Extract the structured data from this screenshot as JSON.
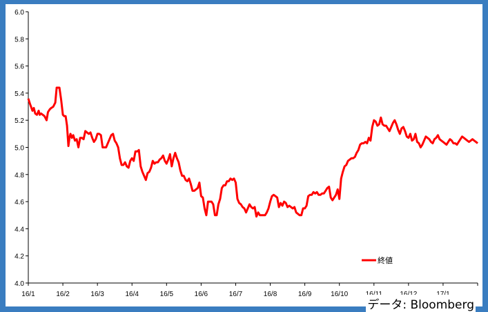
{
  "source": "データ: Bloomberg",
  "chart_data": {
    "type": "line",
    "title": "",
    "xlabel": "",
    "ylabel": "",
    "ylim": [
      4.0,
      6.0
    ],
    "yticks": [
      "4.0",
      "4.2",
      "4.4",
      "4.6",
      "4.8",
      "5.0",
      "5.2",
      "5.4",
      "5.6",
      "5.8",
      "6.0"
    ],
    "xtick_labels": [
      "16/1",
      "16/2",
      "16/3",
      "16/4",
      "16/5",
      "16/6",
      "16/7",
      "16/8",
      "16/9",
      "16/10",
      "16/11",
      "16/12",
      "17/1"
    ],
    "legend": "bottom-right",
    "grid": false,
    "colors": {
      "line": "#ff0000",
      "axis": "#000000",
      "frame": "#3a7dc0"
    },
    "series": [
      {
        "name": "終値",
        "x": [
          0.0,
          0.05,
          0.08,
          0.12,
          0.16,
          0.2,
          0.25,
          0.3,
          0.33,
          0.37,
          0.42,
          0.47,
          0.53,
          0.57,
          0.62,
          0.66,
          0.72,
          0.78,
          0.82,
          0.86,
          0.9,
          0.95,
          1.0,
          1.04,
          1.08,
          1.12,
          1.16,
          1.19,
          1.22,
          1.26,
          1.3,
          1.35,
          1.4,
          1.45,
          1.5,
          1.55,
          1.6,
          1.65,
          1.7,
          1.75,
          1.8,
          1.85,
          1.9,
          1.95,
          2.0,
          2.05,
          2.1,
          2.15,
          2.2,
          2.25,
          2.3,
          2.35,
          2.4,
          2.45,
          2.5,
          2.55,
          2.6,
          2.65,
          2.7,
          2.75,
          2.8,
          2.85,
          2.9,
          2.95,
          3.0,
          3.05,
          3.1,
          3.15,
          3.2,
          3.25,
          3.3,
          3.35,
          3.4,
          3.45,
          3.5,
          3.55,
          3.6,
          3.65,
          3.7,
          3.75,
          3.8,
          3.85,
          3.9,
          3.95,
          4.0,
          4.05,
          4.1,
          4.15,
          4.2,
          4.25,
          4.3,
          4.35,
          4.4,
          4.45,
          4.5,
          4.55,
          4.6,
          4.65,
          4.7,
          4.75,
          4.8,
          4.85,
          4.9,
          4.95,
          5.0,
          5.05,
          5.1,
          5.15,
          5.2,
          5.25,
          5.3,
          5.35,
          5.4,
          5.45,
          5.5,
          5.55,
          5.6,
          5.65,
          5.7,
          5.75,
          5.8,
          5.85,
          5.9,
          5.95,
          6.0,
          6.05,
          6.1,
          6.15,
          6.2,
          6.25,
          6.3,
          6.35,
          6.4,
          6.45,
          6.5,
          6.55,
          6.6,
          6.65,
          6.7,
          6.75,
          6.8,
          6.85,
          6.9,
          6.95,
          7.0,
          7.05,
          7.1,
          7.15,
          7.2,
          7.25,
          7.3,
          7.35,
          7.4,
          7.45,
          7.5,
          7.55,
          7.6,
          7.65,
          7.7,
          7.75,
          7.8,
          7.85,
          7.9,
          7.95,
          8.0,
          8.05,
          8.1,
          8.15,
          8.2,
          8.25,
          8.3,
          8.35,
          8.4,
          8.45,
          8.5,
          8.55,
          8.6,
          8.65,
          8.7,
          8.75,
          8.8,
          8.85,
          8.9,
          8.95,
          9.0,
          9.05,
          9.1,
          9.15,
          9.2,
          9.25,
          9.3,
          9.35,
          9.4,
          9.45,
          9.5,
          9.55,
          9.6,
          9.65,
          9.7,
          9.75,
          9.8,
          9.85,
          9.9,
          9.95,
          10.0,
          10.05,
          10.1,
          10.15,
          10.2,
          10.25,
          10.3,
          10.35,
          10.4,
          10.45,
          10.5,
          10.55,
          10.6,
          10.65,
          10.7,
          10.75,
          10.8,
          10.85,
          10.9,
          10.95,
          11.0,
          11.05,
          11.1,
          11.15,
          11.2,
          11.25,
          11.3,
          11.35,
          11.4,
          11.45,
          11.5,
          11.55,
          11.6,
          11.65,
          11.7,
          11.75,
          11.8,
          11.85,
          11.9,
          11.95,
          12.0,
          12.05,
          12.1,
          12.15,
          12.2,
          12.25,
          12.3,
          12.35,
          12.4,
          12.45,
          12.5,
          12.55,
          12.6,
          12.65,
          12.7,
          12.75,
          12.8,
          12.85,
          12.9,
          12.95,
          13.0
        ],
        "values": [
          5.36,
          5.32,
          5.3,
          5.27,
          5.29,
          5.25,
          5.24,
          5.27,
          5.24,
          5.25,
          5.24,
          5.23,
          5.2,
          5.26,
          5.28,
          5.29,
          5.3,
          5.33,
          5.44,
          5.44,
          5.44,
          5.35,
          5.24,
          5.23,
          5.23,
          5.16,
          5.01,
          5.07,
          5.1,
          5.07,
          5.09,
          5.05,
          5.06,
          5.0,
          5.07,
          5.07,
          5.06,
          5.12,
          5.11,
          5.1,
          5.11,
          5.07,
          5.04,
          5.06,
          5.1,
          5.1,
          5.09,
          5.0,
          5.0,
          5.0,
          5.03,
          5.06,
          5.09,
          5.1,
          5.05,
          5.03,
          5.0,
          4.92,
          4.87,
          4.87,
          4.89,
          4.86,
          4.85,
          4.9,
          4.92,
          4.9,
          4.97,
          4.97,
          4.98,
          4.86,
          4.82,
          4.79,
          4.76,
          4.81,
          4.82,
          4.85,
          4.9,
          4.88,
          4.89,
          4.89,
          4.91,
          4.92,
          4.94,
          4.9,
          4.88,
          4.91,
          4.95,
          4.86,
          4.92,
          4.96,
          4.92,
          4.89,
          4.83,
          4.79,
          4.79,
          4.76,
          4.75,
          4.77,
          4.73,
          4.68,
          4.68,
          4.69,
          4.7,
          4.74,
          4.64,
          4.63,
          4.55,
          4.5,
          4.6,
          4.6,
          4.6,
          4.58,
          4.5,
          4.5,
          4.58,
          4.62,
          4.7,
          4.72,
          4.72,
          4.75,
          4.75,
          4.77,
          4.76,
          4.77,
          4.74,
          4.62,
          4.59,
          4.58,
          4.56,
          4.55,
          4.52,
          4.55,
          4.58,
          4.56,
          4.55,
          4.56,
          4.49,
          4.52,
          4.5,
          4.5,
          4.5,
          4.5,
          4.52,
          4.55,
          4.6,
          4.64,
          4.65,
          4.64,
          4.63,
          4.56,
          4.59,
          4.57,
          4.6,
          4.59,
          4.56,
          4.57,
          4.56,
          4.55,
          4.56,
          4.52,
          4.51,
          4.5,
          4.5,
          4.55,
          4.55,
          4.57,
          4.64,
          4.65,
          4.65,
          4.67,
          4.66,
          4.67,
          4.65,
          4.65,
          4.66,
          4.66,
          4.68,
          4.7,
          4.71,
          4.63,
          4.61,
          4.63,
          4.65,
          4.69,
          4.62,
          4.77,
          4.82,
          4.86,
          4.87,
          4.9,
          4.91,
          4.92,
          4.92,
          4.93,
          4.96,
          4.98,
          5.02,
          5.03,
          5.03,
          5.04,
          5.03,
          5.07,
          5.05,
          5.15,
          5.2,
          5.19,
          5.16,
          5.17,
          5.22,
          5.17,
          5.16,
          5.16,
          5.14,
          5.12,
          5.15,
          5.18,
          5.2,
          5.17,
          5.13,
          5.1,
          5.14,
          5.15,
          5.12,
          5.08,
          5.07,
          5.1,
          5.05,
          5.06,
          5.1,
          5.04,
          5.03,
          5.0,
          5.02,
          5.05,
          5.08,
          5.07,
          5.06,
          5.04,
          5.03,
          5.06,
          5.07,
          5.09,
          5.06,
          5.05,
          5.04,
          5.03,
          5.02,
          5.04,
          5.06,
          5.05,
          5.03,
          5.03,
          5.02,
          5.04,
          5.06,
          5.08,
          5.07,
          5.06,
          5.05,
          5.04,
          5.05,
          5.06,
          5.05,
          5.04,
          5.03
        ]
      }
    ]
  }
}
